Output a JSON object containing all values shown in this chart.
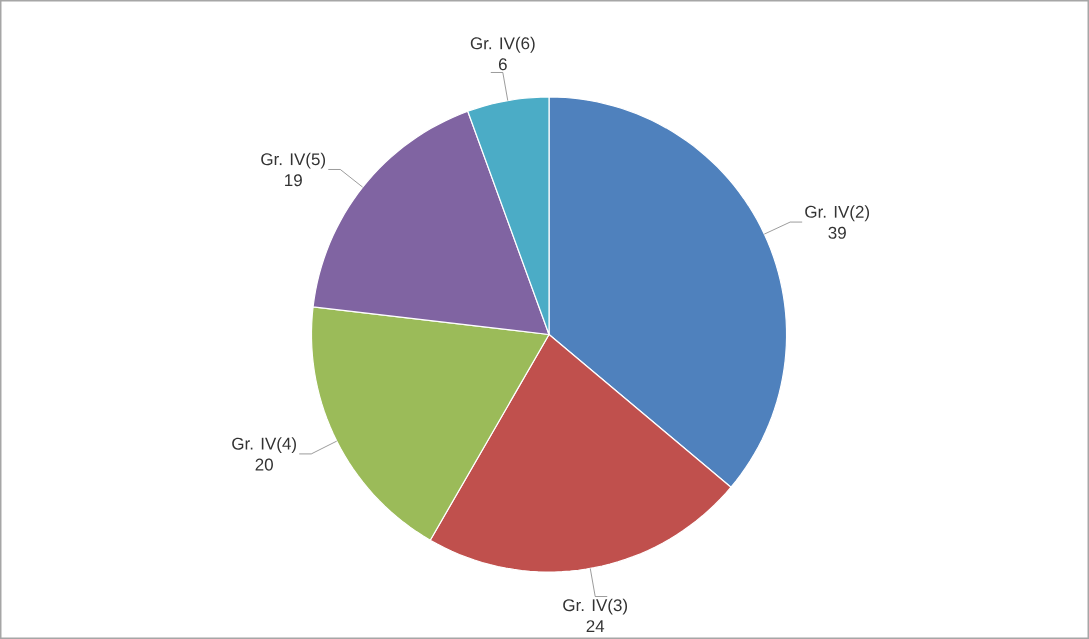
{
  "chart_data": {
    "type": "pie",
    "categories": [
      "Gr. IV(2)",
      "Gr. IV(3)",
      "Gr. IV(4)",
      "Gr. IV(5)",
      "Gr. IV(6)"
    ],
    "values": [
      39,
      24,
      20,
      19,
      6
    ],
    "colors": [
      "#4f81bd",
      "#c0504d",
      "#9bbb59",
      "#8064a2",
      "#4bacc6"
    ],
    "data_labels": true
  }
}
